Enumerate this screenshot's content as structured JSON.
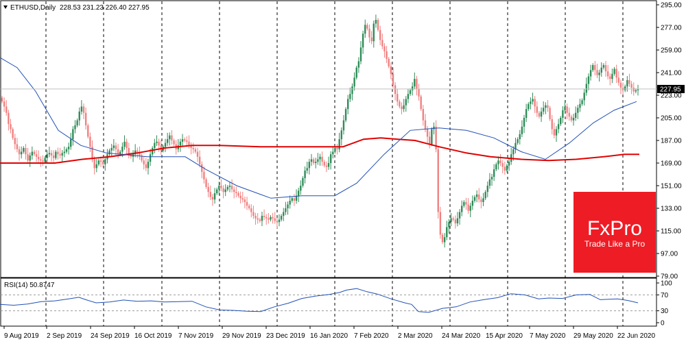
{
  "header": {
    "symbol": "ETHUSD,Daily",
    "ohlc": "228.53 231.23 226.40 227.95"
  },
  "price_axis": {
    "ticks": [
      "295.00",
      "277.00",
      "259.00",
      "241.00",
      "223.00",
      "205.00",
      "187.00",
      "169.00",
      "151.00",
      "133.00",
      "115.00",
      "97.00",
      "79.00"
    ],
    "last_price": "227.95"
  },
  "rsi": {
    "label": "RSI(14) 50.8747",
    "ticks": [
      "100",
      "70",
      "30",
      "0"
    ]
  },
  "date_axis": {
    "labels": [
      "9 Aug 2019",
      "2 Sep 2019",
      "24 Sep 2019",
      "16 Oct 2019",
      "7 Nov 2019",
      "29 Nov 2019",
      "23 Dec 2019",
      "16 Jan 2020",
      "7 Feb 2020",
      "2 Mar 2020",
      "24 Mar 2020",
      "15 Apr 2020",
      "7 May 2020",
      "29 May 2020",
      "22 Jun 2020"
    ]
  },
  "logo": {
    "brand": "FxPro",
    "tagline": "Trade Like a Pro"
  },
  "colors": {
    "bull": "#2e8b57",
    "bear": "#f08080",
    "ma_fast": "#1f4fb5",
    "ma_slow": "#e00000",
    "rsi_line": "#1f4fb5",
    "logo_bg": "#ee1c25"
  },
  "chart_data": {
    "type": "candlestick",
    "title": "ETHUSD, Daily",
    "ylim": [
      79,
      295
    ],
    "closes": [
      218,
      214,
      209,
      200,
      196,
      189,
      184,
      180,
      176,
      178,
      181,
      176,
      171,
      175,
      178,
      176,
      174,
      172,
      171,
      170,
      173,
      176,
      177,
      175,
      173,
      178,
      176,
      175,
      177,
      178,
      180,
      182,
      188,
      196,
      199,
      203,
      210,
      214,
      209,
      199,
      190,
      182,
      172,
      165,
      168,
      171,
      170,
      168,
      172,
      176,
      179,
      181,
      183,
      180,
      176,
      178,
      182,
      186,
      181,
      176,
      174,
      176,
      179,
      178,
      175,
      171,
      168,
      165,
      170,
      176,
      181,
      185,
      186,
      183,
      179,
      182,
      185,
      188,
      191,
      187,
      184,
      180,
      183,
      186,
      188,
      187,
      186,
      183,
      181,
      180,
      178,
      174,
      168,
      162,
      156,
      150,
      146,
      142,
      140,
      145,
      148,
      151,
      149,
      146,
      148,
      150,
      151,
      148,
      146,
      145,
      143,
      141,
      140,
      138,
      135,
      133,
      130,
      127,
      125,
      124,
      123,
      127,
      126,
      125,
      124,
      126,
      125,
      123,
      122,
      124,
      127,
      130,
      133,
      136,
      139,
      141,
      139,
      143,
      147,
      151,
      157,
      163,
      165,
      170,
      172,
      169,
      170,
      172,
      174,
      170,
      167,
      166,
      169,
      176,
      178,
      181,
      180,
      188,
      195,
      203,
      212,
      220,
      224,
      230,
      237,
      245,
      250,
      261,
      272,
      279,
      276,
      269,
      266,
      280,
      283,
      275,
      267,
      262,
      258,
      252,
      246,
      240,
      231,
      224,
      218,
      214,
      212,
      215,
      220,
      224,
      227,
      230,
      236,
      228,
      222,
      212,
      203,
      196,
      190,
      184,
      196,
      198,
      180,
      130,
      112,
      106,
      110,
      118,
      122,
      125,
      124,
      121,
      125,
      130,
      135,
      138,
      136,
      131,
      135,
      139,
      142,
      144,
      140,
      138,
      141,
      146,
      151,
      156,
      158,
      164,
      168,
      171,
      169,
      166,
      163,
      167,
      170,
      176,
      180,
      185,
      188,
      192,
      198,
      205,
      212,
      216,
      218,
      220,
      214,
      209,
      206,
      210,
      213,
      215,
      213,
      204,
      196,
      191,
      196,
      200,
      205,
      211,
      214,
      209,
      206,
      203,
      205,
      209,
      213,
      216,
      219,
      225,
      232,
      238,
      243,
      247,
      243,
      239,
      241,
      245,
      247,
      242,
      238,
      236,
      240,
      244,
      237,
      233,
      229,
      227,
      230,
      235,
      232,
      229,
      226,
      227,
      228
    ],
    "ma_fast": [
      [
        0,
        253
      ],
      [
        25,
        245
      ],
      [
        52,
        226
      ],
      [
        85,
        195
      ],
      [
        118,
        183
      ],
      [
        155,
        177
      ],
      [
        215,
        174
      ],
      [
        270,
        174
      ],
      [
        300,
        164
      ],
      [
        345,
        151
      ],
      [
        395,
        141
      ],
      [
        440,
        143
      ],
      [
        488,
        143
      ],
      [
        520,
        153
      ],
      [
        560,
        176
      ],
      [
        598,
        195
      ],
      [
        640,
        197
      ],
      [
        680,
        195
      ],
      [
        720,
        189
      ],
      [
        760,
        178
      ],
      [
        795,
        172
      ],
      [
        830,
        185
      ],
      [
        865,
        201
      ],
      [
        895,
        211
      ],
      [
        928,
        218
      ]
    ],
    "ma_slow": [
      [
        0,
        169
      ],
      [
        40,
        169
      ],
      [
        80,
        169
      ],
      [
        120,
        172
      ],
      [
        160,
        174
      ],
      [
        200,
        177
      ],
      [
        240,
        181
      ],
      [
        280,
        183
      ],
      [
        320,
        183
      ],
      [
        380,
        182
      ],
      [
        440,
        182
      ],
      [
        500,
        182
      ],
      [
        530,
        188
      ],
      [
        555,
        189
      ],
      [
        580,
        188
      ],
      [
        605,
        187
      ],
      [
        640,
        182
      ],
      [
        680,
        177
      ],
      [
        715,
        174
      ],
      [
        760,
        172
      ],
      [
        800,
        171
      ],
      [
        840,
        172
      ],
      [
        880,
        174
      ],
      [
        910,
        176
      ],
      [
        932,
        176
      ]
    ],
    "rsi_values": [
      [
        0,
        46
      ],
      [
        20,
        44
      ],
      [
        40,
        47
      ],
      [
        60,
        53
      ],
      [
        80,
        55
      ],
      [
        100,
        60
      ],
      [
        115,
        64
      ],
      [
        125,
        58
      ],
      [
        140,
        50
      ],
      [
        160,
        52
      ],
      [
        180,
        57
      ],
      [
        200,
        54
      ],
      [
        220,
        55
      ],
      [
        240,
        52
      ],
      [
        260,
        53
      ],
      [
        280,
        54
      ],
      [
        300,
        40
      ],
      [
        320,
        32
      ],
      [
        340,
        31
      ],
      [
        360,
        29
      ],
      [
        380,
        28
      ],
      [
        400,
        40
      ],
      [
        420,
        49
      ],
      [
        440,
        61
      ],
      [
        460,
        67
      ],
      [
        480,
        71
      ],
      [
        495,
        76
      ],
      [
        505,
        82
      ],
      [
        520,
        86
      ],
      [
        535,
        78
      ],
      [
        550,
        72
      ],
      [
        570,
        60
      ],
      [
        590,
        50
      ],
      [
        600,
        46
      ],
      [
        610,
        28
      ],
      [
        625,
        26
      ],
      [
        645,
        36
      ],
      [
        665,
        40
      ],
      [
        685,
        52
      ],
      [
        705,
        58
      ],
      [
        725,
        63
      ],
      [
        745,
        73
      ],
      [
        765,
        70
      ],
      [
        785,
        60
      ],
      [
        800,
        62
      ],
      [
        820,
        61
      ],
      [
        840,
        70
      ],
      [
        860,
        71
      ],
      [
        875,
        58
      ],
      [
        900,
        60
      ],
      [
        915,
        56
      ],
      [
        930,
        50
      ]
    ],
    "rsi_ylim": [
      0,
      100
    ],
    "rsi_levels": [
      30,
      70
    ]
  }
}
